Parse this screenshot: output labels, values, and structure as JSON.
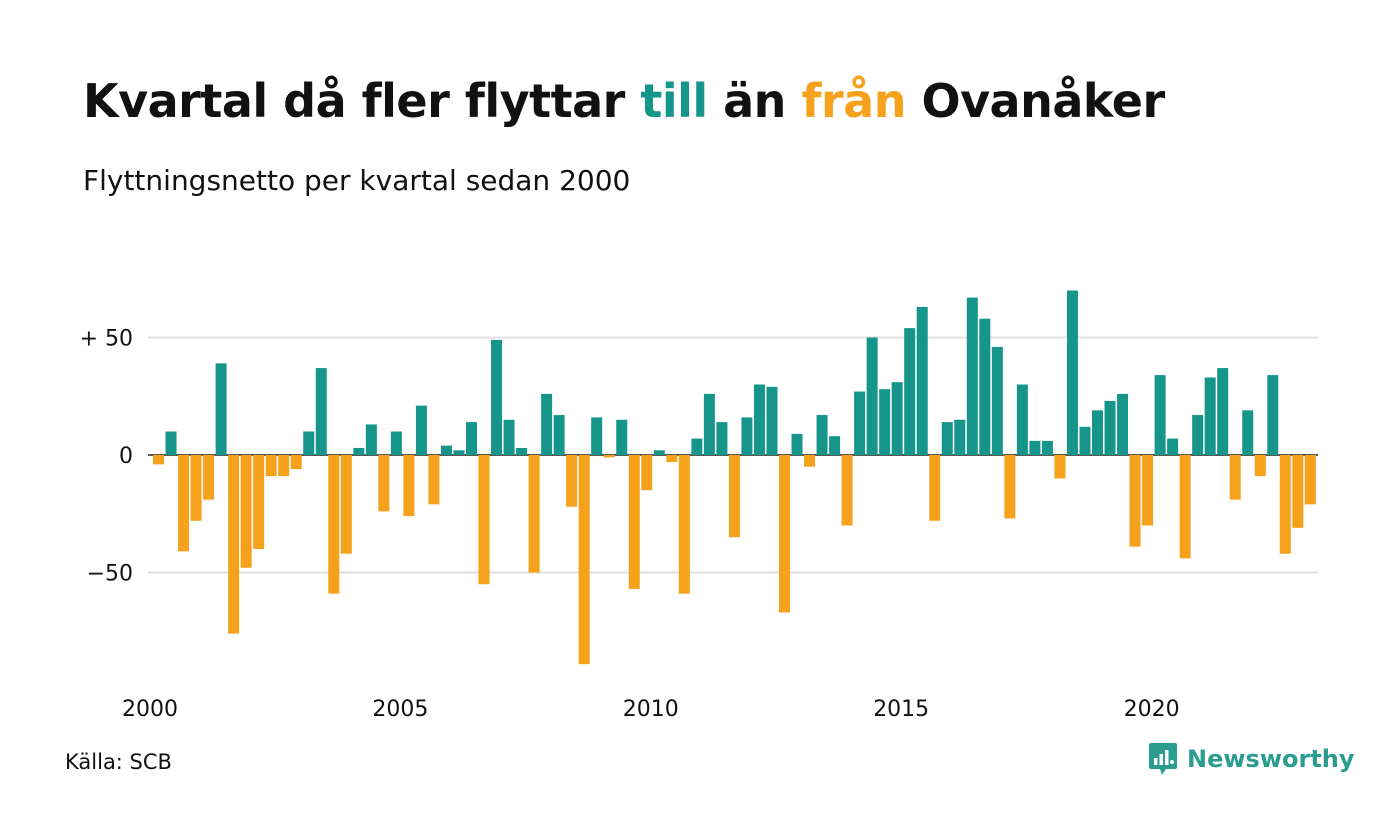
{
  "header": {
    "title_part1": "Kvartal då fler flyttar ",
    "title_pos": "till",
    "title_part2": " än ",
    "title_neg": "från",
    "title_part3": " Ovanåker",
    "subtitle": "Flyttningsnetto per kvartal sedan 2000"
  },
  "footer": {
    "source": "Källa: SCB",
    "brand": "Newsworthy"
  },
  "colors": {
    "positive": "#16968a",
    "negative": "#f5a11c",
    "brand": "#2a9d8f",
    "grid": "#e0e0e0"
  },
  "icons": {
    "brand_logo": "newsworthy-logo-icon"
  },
  "chart_data": {
    "type": "bar",
    "x_start": "2000 Q1",
    "ylim": [
      -95,
      73
    ],
    "yticks": [
      50,
      0,
      -50
    ],
    "ytick_labels": [
      "+ 50",
      "0",
      "−50"
    ],
    "xtick_labels": [
      "2000",
      "2005",
      "2010",
      "2015",
      "2020"
    ],
    "grid": true,
    "values": [
      -4,
      10,
      -41,
      -28,
      -19,
      39,
      -76,
      -48,
      -40,
      -9,
      -9,
      -6,
      10,
      37,
      -59,
      -42,
      3,
      13,
      -24,
      10,
      -26,
      21,
      -21,
      4,
      2,
      14,
      -55,
      49,
      15,
      3,
      -50,
      26,
      17,
      -22,
      -89,
      16,
      -1,
      15,
      -57,
      -15,
      2,
      -3,
      -59,
      7,
      26,
      14,
      -35,
      16,
      30,
      29,
      -67,
      9,
      -5,
      17,
      8,
      -30,
      27,
      50,
      28,
      31,
      54,
      63,
      -28,
      14,
      15,
      67,
      58,
      46,
      -27,
      30,
      6,
      6,
      -10,
      70,
      12,
      19,
      23,
      26,
      -39,
      -30,
      34,
      7,
      -44,
      17,
      33,
      37,
      -19,
      19,
      -9,
      34,
      -42,
      -31,
      -21
    ]
  }
}
